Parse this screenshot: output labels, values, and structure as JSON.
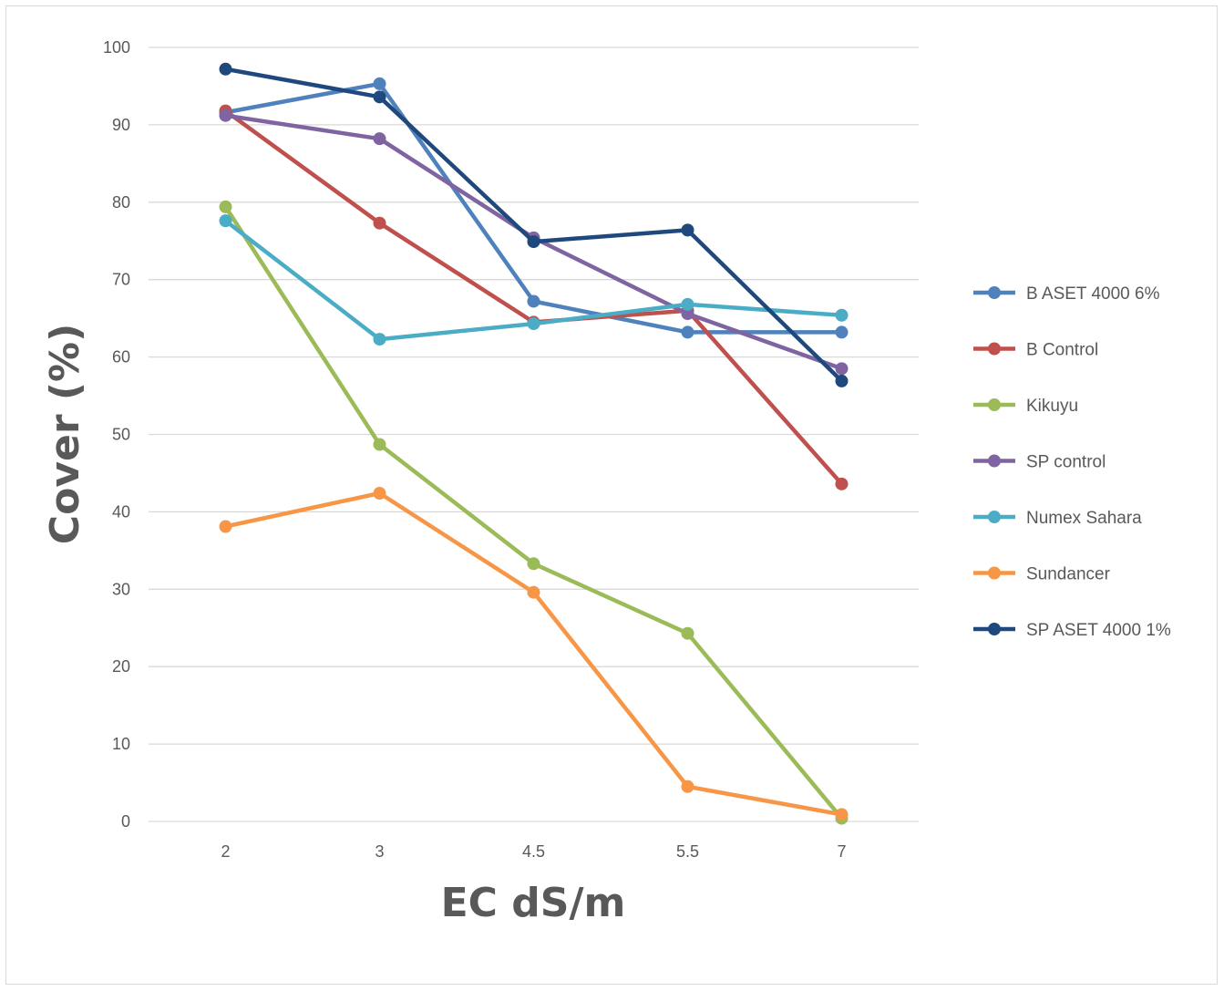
{
  "chart_data": {
    "type": "line",
    "x_axis_title": "EC dS/m",
    "y_axis_title": "Cover (%)",
    "categories": [
      "2",
      "3",
      "4.5",
      "5.5",
      "7"
    ],
    "ylim": [
      0,
      100
    ],
    "y_ticks": [
      "0",
      "10",
      "20",
      "30",
      "40",
      "50",
      "60",
      "70",
      "80",
      "90",
      "100"
    ],
    "grid": true,
    "legend_position": "right",
    "series": [
      {
        "name": "B ASET 4000 6%",
        "color": "#4f81bd",
        "values": [
          91.6,
          95.3,
          67.2,
          63.2,
          63.2
        ]
      },
      {
        "name": "B Control",
        "color": "#c0504d",
        "values": [
          91.8,
          77.3,
          64.5,
          66.0,
          43.6
        ]
      },
      {
        "name": "Kikuyu",
        "color": "#9bbb59",
        "values": [
          79.4,
          48.7,
          33.3,
          24.3,
          0.4
        ]
      },
      {
        "name": "SP control",
        "color": "#8064a2",
        "values": [
          91.2,
          88.2,
          75.4,
          65.6,
          58.5
        ]
      },
      {
        "name": "Numex Sahara",
        "color": "#4bacc6",
        "values": [
          77.6,
          62.3,
          64.3,
          66.8,
          65.4
        ]
      },
      {
        "name": "Sundancer",
        "color": "#f79646",
        "values": [
          38.1,
          42.4,
          29.6,
          4.5,
          0.9
        ]
      },
      {
        "name": "SP ASET 4000 1%",
        "color": "#1f497d",
        "values": [
          97.2,
          93.6,
          74.9,
          76.4,
          56.9
        ]
      }
    ]
  }
}
